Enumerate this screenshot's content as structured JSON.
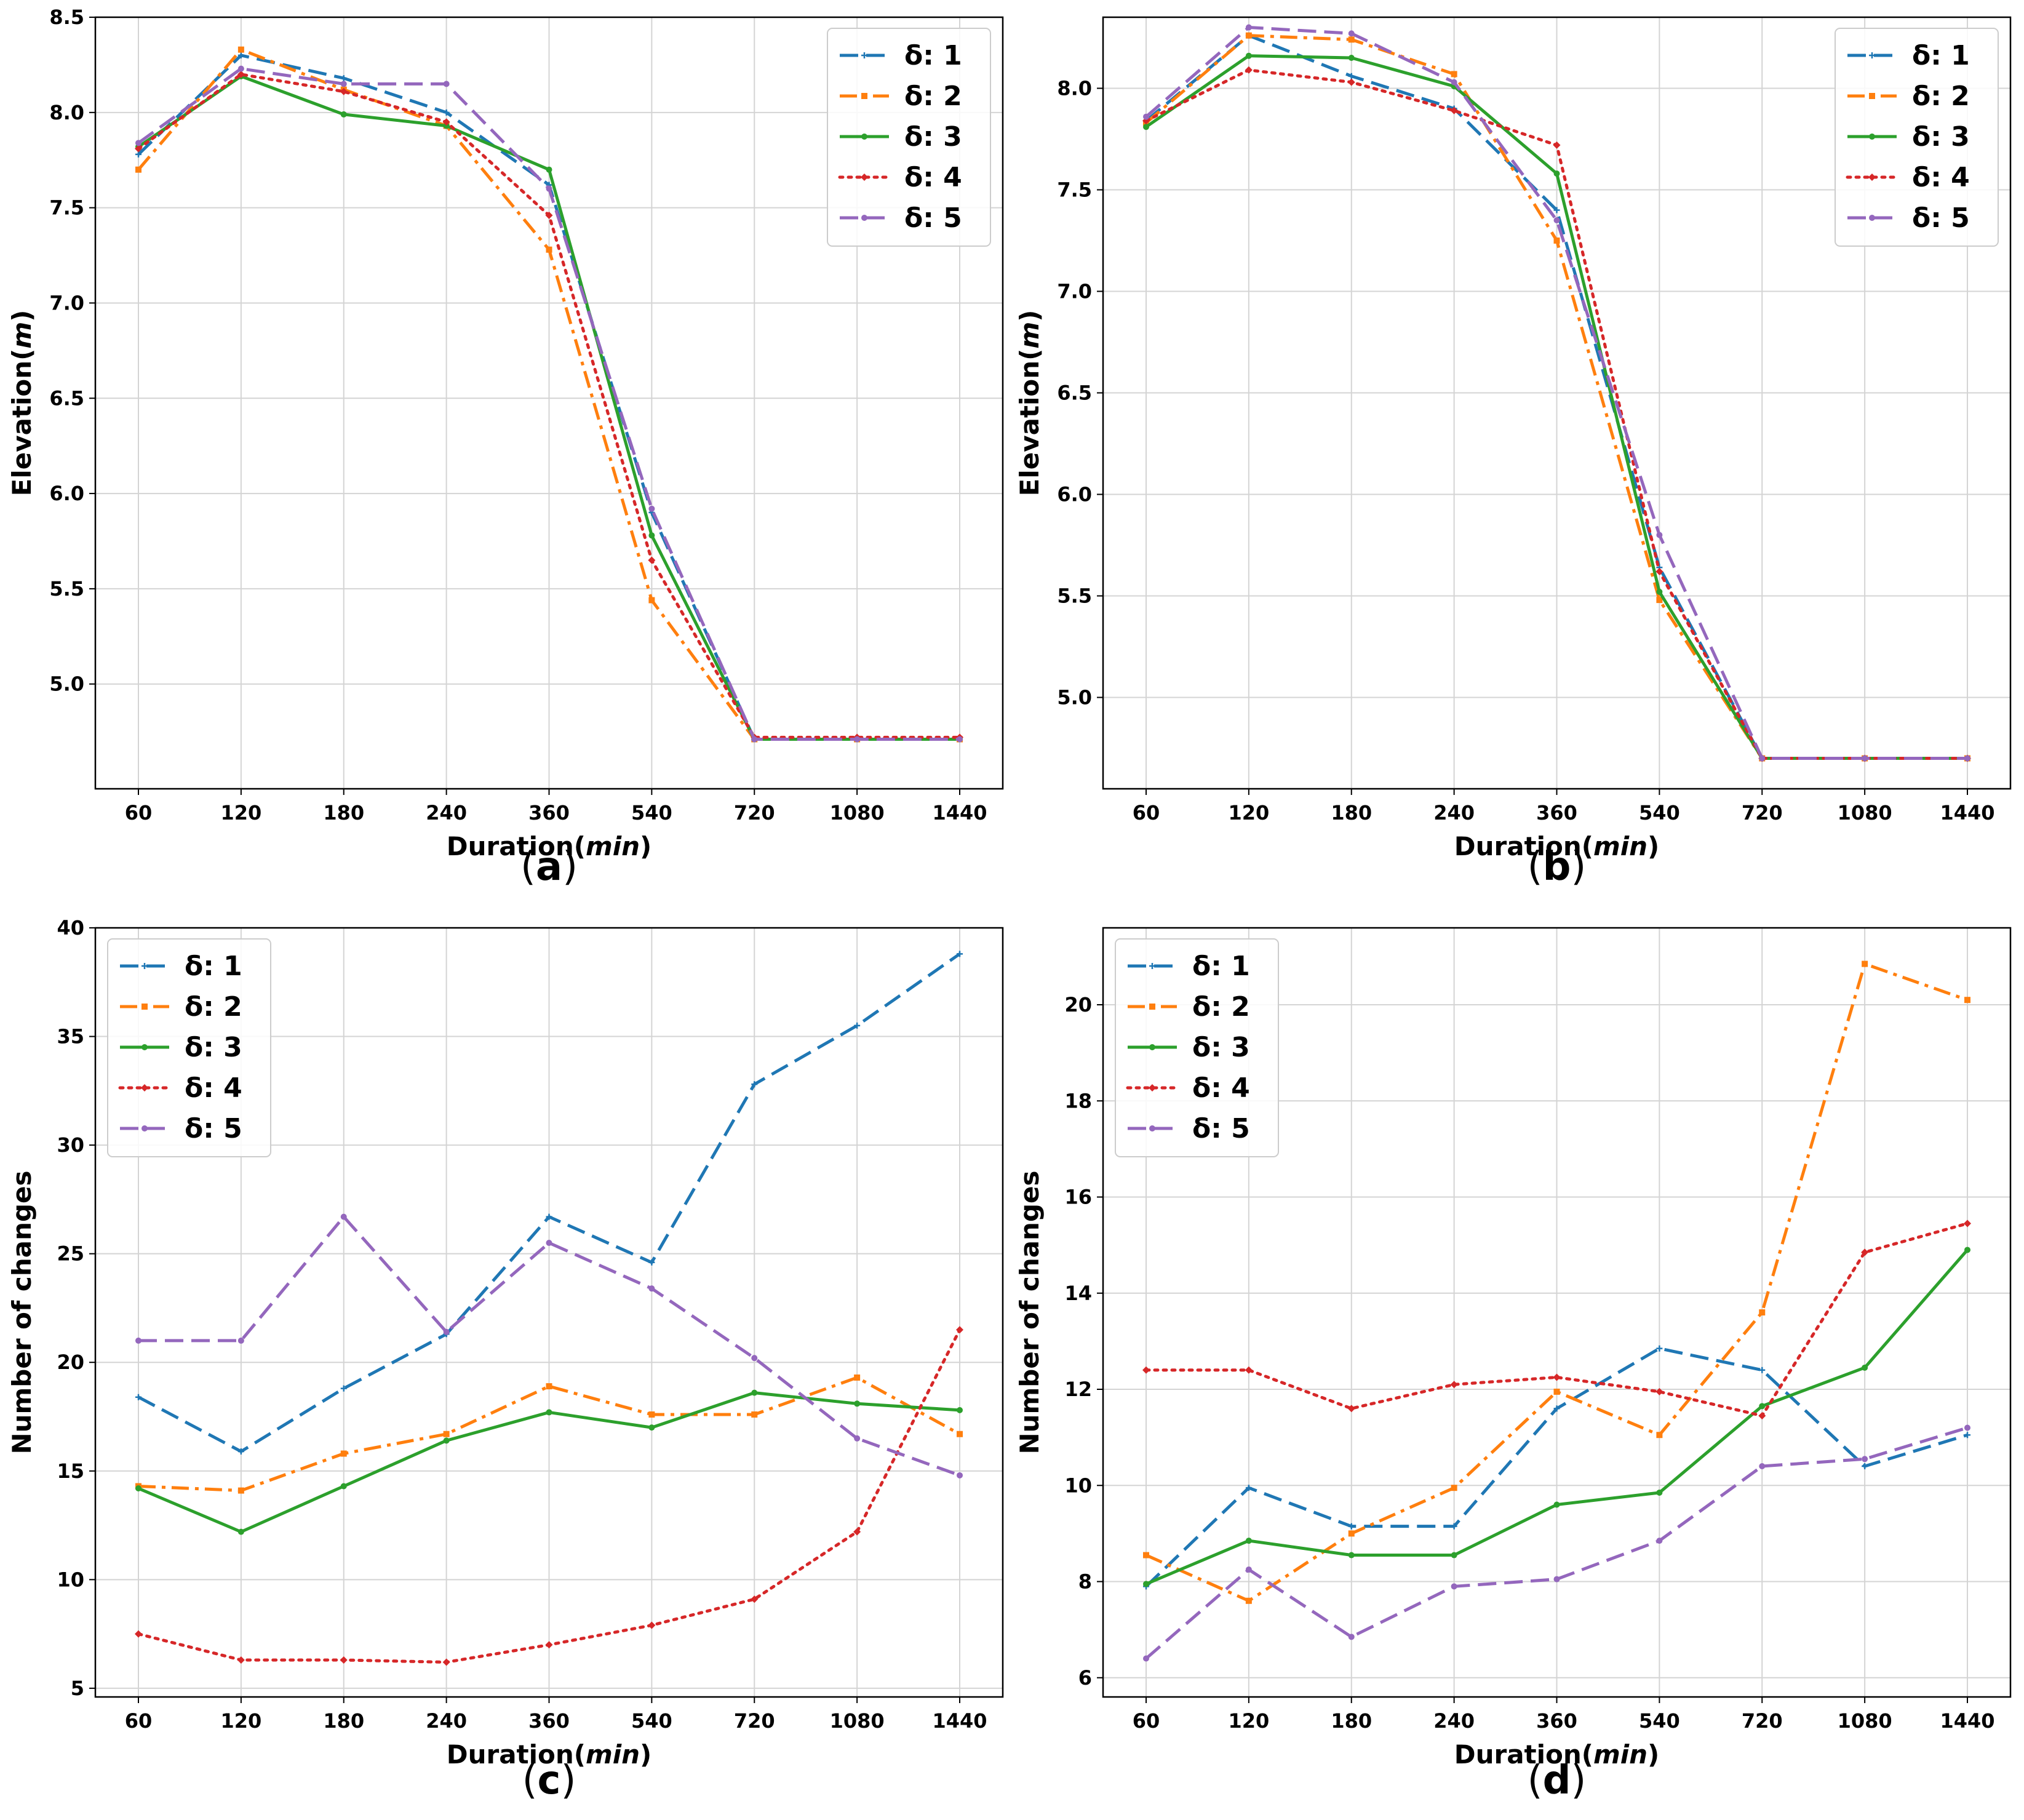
{
  "chart_data": [
    {
      "id": "a",
      "type": "line",
      "panel_label": "a",
      "xlabel": "Duration",
      "xlabel_unit": "min",
      "ylabel": "Elevation",
      "ylabel_unit": "m",
      "categories": [
        "60",
        "120",
        "180",
        "240",
        "360",
        "540",
        "720",
        "1080",
        "1440"
      ],
      "ylim": [
        4.45,
        8.5
      ],
      "yticks": [
        5.0,
        5.5,
        6.0,
        6.5,
        7.0,
        7.5,
        8.0,
        8.5
      ],
      "ytick_labels": [
        "5.0",
        "5.5",
        "6.0",
        "6.5",
        "7.0",
        "7.5",
        "8.0",
        "8.5"
      ],
      "grid": true,
      "legend_position": "top-right",
      "series": [
        {
          "name": "δ: 1",
          "color": "#1f77b4",
          "style": "dashed",
          "marker": "plus",
          "values": [
            7.78,
            8.3,
            8.18,
            8.0,
            7.62,
            5.9,
            4.71,
            4.71,
            4.71
          ]
        },
        {
          "name": "δ: 2",
          "color": "#ff7f0e",
          "style": "dashdot",
          "marker": "square",
          "values": [
            7.7,
            8.33,
            8.12,
            7.93,
            7.28,
            5.44,
            4.71,
            4.71,
            4.71
          ]
        },
        {
          "name": "δ: 3",
          "color": "#2ca02c",
          "style": "solid",
          "marker": "dot",
          "values": [
            7.82,
            8.19,
            7.99,
            7.93,
            7.7,
            5.78,
            4.71,
            4.71,
            4.71
          ]
        },
        {
          "name": "δ: 4",
          "color": "#d62728",
          "style": "dotted",
          "marker": "diamond",
          "values": [
            7.81,
            8.2,
            8.11,
            7.95,
            7.46,
            5.65,
            4.72,
            4.72,
            4.72
          ]
        },
        {
          "name": "δ: 5",
          "color": "#9467bd",
          "style": "dashed",
          "marker": "dot",
          "values": [
            7.84,
            8.23,
            8.15,
            8.15,
            7.6,
            5.92,
            4.71,
            4.71,
            4.71
          ]
        }
      ]
    },
    {
      "id": "b",
      "type": "line",
      "panel_label": "b",
      "xlabel": "Duration",
      "xlabel_unit": "min",
      "ylabel": "Elevation",
      "ylabel_unit": "m",
      "categories": [
        "60",
        "120",
        "180",
        "240",
        "360",
        "540",
        "720",
        "1080",
        "1440"
      ],
      "ylim": [
        4.55,
        8.35
      ],
      "yticks": [
        5.0,
        5.5,
        6.0,
        6.5,
        7.0,
        7.5,
        8.0
      ],
      "ytick_labels": [
        "5.0",
        "5.5",
        "6.0",
        "6.5",
        "7.0",
        "7.5",
        "8.0"
      ],
      "grid": true,
      "legend_position": "top-right",
      "series": [
        {
          "name": "δ: 1",
          "color": "#1f77b4",
          "style": "dashed",
          "marker": "plus",
          "values": [
            7.84,
            8.26,
            8.06,
            7.9,
            7.4,
            5.64,
            4.7,
            4.7,
            4.7
          ]
        },
        {
          "name": "δ: 2",
          "color": "#ff7f0e",
          "style": "dashdot",
          "marker": "square",
          "values": [
            7.83,
            8.26,
            8.24,
            8.07,
            7.25,
            5.48,
            4.7,
            4.7,
            4.7
          ]
        },
        {
          "name": "δ: 3",
          "color": "#2ca02c",
          "style": "solid",
          "marker": "dot",
          "values": [
            7.81,
            8.16,
            8.15,
            8.01,
            7.58,
            5.52,
            4.7,
            4.7,
            4.7
          ]
        },
        {
          "name": "δ: 4",
          "color": "#d62728",
          "style": "dotted",
          "marker": "diamond",
          "values": [
            7.84,
            8.09,
            8.03,
            7.89,
            7.72,
            5.62,
            4.7,
            4.7,
            4.7
          ]
        },
        {
          "name": "δ: 5",
          "color": "#9467bd",
          "style": "dashed",
          "marker": "dot",
          "values": [
            7.86,
            8.3,
            8.27,
            8.03,
            7.35,
            5.8,
            4.7,
            4.7,
            4.7
          ]
        }
      ]
    },
    {
      "id": "c",
      "type": "line",
      "panel_label": "c",
      "xlabel": "Duration",
      "xlabel_unit": "min",
      "ylabel": "Number of changes",
      "ylabel_unit": "",
      "categories": [
        "60",
        "120",
        "180",
        "240",
        "360",
        "540",
        "720",
        "1080",
        "1440"
      ],
      "ylim": [
        4.6,
        40.0
      ],
      "yticks": [
        5,
        10,
        15,
        20,
        25,
        30,
        35,
        40
      ],
      "ytick_labels": [
        "5",
        "10",
        "15",
        "20",
        "25",
        "30",
        "35",
        "40"
      ],
      "grid": true,
      "legend_position": "top-left",
      "series": [
        {
          "name": "δ: 1",
          "color": "#1f77b4",
          "style": "dashed",
          "marker": "plus",
          "values": [
            18.4,
            15.9,
            18.8,
            21.3,
            26.7,
            24.6,
            32.8,
            35.5,
            38.8
          ]
        },
        {
          "name": "δ: 2",
          "color": "#ff7f0e",
          "style": "dashdot",
          "marker": "square",
          "values": [
            14.3,
            14.1,
            15.8,
            16.7,
            18.9,
            17.6,
            17.6,
            19.3,
            16.7
          ]
        },
        {
          "name": "δ: 3",
          "color": "#2ca02c",
          "style": "solid",
          "marker": "dot",
          "values": [
            14.2,
            12.2,
            14.3,
            16.4,
            17.7,
            17.0,
            18.6,
            18.1,
            17.8
          ]
        },
        {
          "name": "δ: 4",
          "color": "#d62728",
          "style": "dotted",
          "marker": "diamond",
          "values": [
            7.5,
            6.3,
            6.3,
            6.2,
            7.0,
            7.9,
            9.1,
            12.2,
            21.5
          ]
        },
        {
          "name": "δ: 5",
          "color": "#9467bd",
          "style": "dashed",
          "marker": "dot",
          "values": [
            21.0,
            21.0,
            26.7,
            21.4,
            25.5,
            23.4,
            20.2,
            16.5,
            14.8
          ]
        }
      ]
    },
    {
      "id": "d",
      "type": "line",
      "panel_label": "d",
      "xlabel": "Duration",
      "xlabel_unit": "min",
      "ylabel": "Number of changes",
      "ylabel_unit": "",
      "categories": [
        "60",
        "120",
        "180",
        "240",
        "360",
        "540",
        "720",
        "1080",
        "1440"
      ],
      "ylim": [
        5.6,
        21.6
      ],
      "yticks": [
        6,
        8,
        10,
        12,
        14,
        16,
        18,
        20
      ],
      "ytick_labels": [
        "6",
        "8",
        "10",
        "12",
        "14",
        "16",
        "18",
        "20"
      ],
      "grid": true,
      "legend_position": "top-left",
      "series": [
        {
          "name": "δ: 1",
          "color": "#1f77b4",
          "style": "dashed",
          "marker": "plus",
          "values": [
            7.9,
            9.95,
            9.15,
            9.15,
            11.6,
            12.85,
            12.4,
            10.4,
            11.05
          ]
        },
        {
          "name": "δ: 2",
          "color": "#ff7f0e",
          "style": "dashdot",
          "marker": "square",
          "values": [
            8.55,
            7.6,
            9.0,
            9.95,
            11.95,
            11.05,
            13.6,
            20.85,
            20.1
          ]
        },
        {
          "name": "δ: 3",
          "color": "#2ca02c",
          "style": "solid",
          "marker": "dot",
          "values": [
            7.95,
            8.85,
            8.55,
            8.55,
            9.6,
            9.85,
            11.65,
            12.45,
            14.9
          ]
        },
        {
          "name": "δ: 4",
          "color": "#d62728",
          "style": "dotted",
          "marker": "diamond",
          "values": [
            12.4,
            12.4,
            11.6,
            12.1,
            12.25,
            11.95,
            11.45,
            14.85,
            15.45
          ]
        },
        {
          "name": "δ: 5",
          "color": "#9467bd",
          "style": "dashed",
          "marker": "dot",
          "values": [
            6.4,
            8.25,
            6.85,
            7.9,
            8.05,
            8.85,
            10.4,
            10.55,
            11.2
          ]
        }
      ]
    }
  ]
}
